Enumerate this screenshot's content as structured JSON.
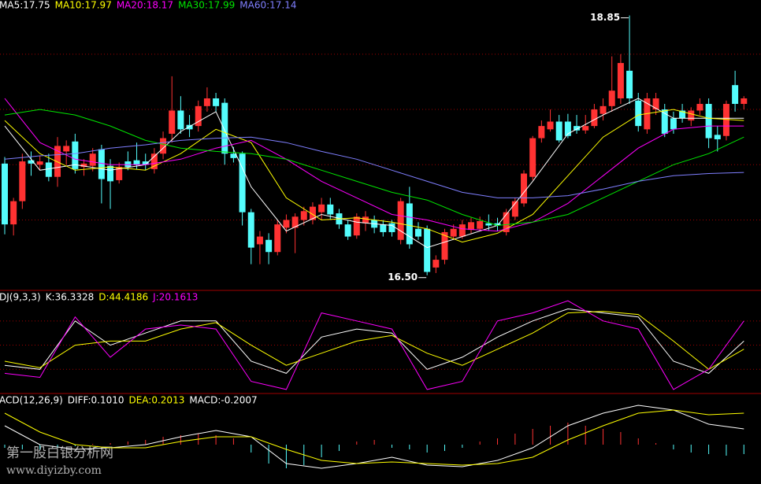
{
  "chart_data": [
    {
      "type": "candlestick",
      "up_color": "#ff3232",
      "down_color": "#54fcfc",
      "ylim": [
        16.37,
        18.99
      ],
      "yticks": [
        17.0,
        17.5,
        18.0,
        18.5
      ],
      "grid": true,
      "open": [
        17.51,
        16.96,
        17.17,
        17.54,
        17.5,
        17.52,
        17.39,
        17.62,
        17.71,
        17.48,
        17.49,
        17.64,
        17.49,
        17.36,
        17.53,
        17.54,
        17.53,
        17.46,
        17.6,
        17.78,
        17.99,
        17.86,
        17.85,
        18.03,
        18.1,
        18.06,
        17.6,
        17.6,
        17.07,
        16.78,
        16.82,
        16.71,
        16.93,
        16.93,
        17.0,
        17.0,
        17.07,
        17.14,
        17.06,
        16.96,
        16.86,
        16.97,
        17.0,
        16.96,
        16.97,
        16.82,
        17.15,
        16.92,
        16.92,
        16.57,
        16.64,
        16.85,
        16.85,
        16.91,
        16.92,
        16.97,
        16.97,
        16.89,
        17.03,
        17.15,
        17.39,
        17.74,
        17.82,
        17.89,
        17.89,
        17.85,
        17.81,
        17.85,
        17.96,
        18.03,
        18.1,
        18.35,
        18.08,
        17.82,
        18.0,
        18.0,
        17.92,
        17.99,
        17.9,
        17.99,
        18.05,
        17.77,
        17.76,
        18.22,
        18.05
      ],
      "high": [
        17.57,
        17.2,
        17.6,
        17.62,
        17.58,
        17.6,
        17.75,
        17.72,
        17.78,
        17.55,
        17.65,
        17.68,
        17.55,
        17.52,
        17.62,
        17.7,
        17.6,
        17.65,
        17.8,
        18.3,
        18.12,
        17.95,
        18.08,
        18.2,
        18.15,
        18.1,
        17.66,
        17.62,
        17.1,
        16.9,
        16.88,
        17.0,
        17.05,
        17.06,
        17.12,
        17.16,
        17.2,
        17.2,
        17.1,
        17.0,
        17.06,
        17.08,
        17.04,
        17.0,
        17.0,
        17.2,
        17.3,
        16.98,
        16.95,
        16.68,
        16.92,
        16.96,
        17.0,
        17.02,
        17.03,
        17.05,
        17.02,
        17.1,
        17.2,
        17.45,
        17.76,
        17.9,
        18.0,
        17.95,
        17.96,
        17.95,
        17.95,
        18.05,
        18.1,
        18.48,
        18.5,
        18.85,
        18.15,
        18.15,
        18.15,
        18.05,
        17.98,
        18.05,
        18.02,
        18.1,
        18.1,
        17.85,
        18.08,
        18.35,
        18.12
      ],
      "low": [
        16.87,
        16.86,
        17.1,
        17.4,
        17.45,
        17.35,
        17.3,
        17.5,
        17.42,
        17.4,
        17.44,
        17.15,
        17.1,
        17.33,
        17.45,
        17.46,
        17.45,
        17.42,
        17.55,
        17.7,
        17.78,
        17.75,
        17.8,
        17.98,
        17.98,
        17.5,
        17.52,
        16.95,
        16.6,
        16.6,
        16.6,
        16.68,
        16.88,
        16.7,
        16.95,
        16.96,
        17.0,
        17.0,
        16.92,
        16.82,
        16.83,
        16.9,
        16.88,
        16.85,
        16.85,
        16.78,
        16.74,
        16.82,
        16.5,
        16.52,
        16.6,
        16.82,
        16.83,
        16.88,
        16.9,
        16.9,
        16.9,
        16.86,
        17.0,
        17.12,
        17.36,
        17.7,
        17.8,
        17.7,
        17.74,
        17.78,
        17.78,
        17.83,
        17.9,
        17.98,
        18.05,
        18.05,
        17.8,
        17.78,
        17.95,
        17.75,
        17.78,
        17.88,
        17.85,
        17.95,
        17.65,
        17.62,
        17.72,
        17.98,
        18.0
      ],
      "close": [
        16.96,
        17.17,
        17.53,
        17.51,
        17.53,
        17.39,
        17.67,
        17.67,
        17.46,
        17.51,
        17.6,
        17.37,
        17.35,
        17.48,
        17.48,
        17.5,
        17.5,
        17.6,
        17.74,
        17.99,
        17.82,
        17.82,
        18.03,
        18.1,
        18.03,
        17.6,
        17.56,
        17.07,
        16.75,
        16.85,
        16.71,
        16.96,
        17.0,
        17.03,
        17.08,
        17.12,
        17.14,
        17.05,
        16.96,
        16.85,
        17.03,
        17.03,
        16.93,
        16.89,
        16.89,
        17.17,
        16.78,
        16.85,
        16.53,
        16.64,
        16.89,
        16.92,
        16.96,
        16.98,
        16.99,
        16.95,
        16.95,
        17.07,
        17.17,
        17.42,
        17.74,
        17.85,
        17.89,
        17.72,
        17.76,
        17.81,
        17.85,
        18.0,
        18.03,
        18.17,
        18.42,
        18.1,
        17.85,
        18.1,
        18.1,
        17.78,
        17.82,
        17.92,
        17.99,
        18.05,
        17.74,
        17.73,
        18.05,
        18.05,
        18.1
      ],
      "annotations": [
        {
          "label": "18.85",
          "x": 71
        },
        {
          "label": "16.50",
          "x": 48
        }
      ],
      "series": [
        {
          "name": "MA5:17.75",
          "color": "#ffffff",
          "x": [
            0,
            4,
            8,
            12,
            16,
            20,
            24,
            28,
            32,
            36,
            40,
            44,
            48,
            52,
            56,
            60,
            64,
            68,
            72,
            76,
            80,
            84
          ],
          "values": [
            17.85,
            17.45,
            17.5,
            17.45,
            17.5,
            17.8,
            17.98,
            17.3,
            16.9,
            17.05,
            16.98,
            16.95,
            16.75,
            16.85,
            16.95,
            17.35,
            17.78,
            17.95,
            18.1,
            17.92,
            17.92,
            17.92
          ]
        },
        {
          "name": "MA10:17.97",
          "color": "#ffff00",
          "x": [
            0,
            4,
            8,
            12,
            16,
            20,
            24,
            28,
            32,
            36,
            40,
            44,
            48,
            52,
            56,
            60,
            64,
            68,
            72,
            76,
            80,
            84
          ],
          "values": [
            17.9,
            17.6,
            17.45,
            17.48,
            17.45,
            17.6,
            17.82,
            17.7,
            17.2,
            17.0,
            17.02,
            16.98,
            16.92,
            16.8,
            16.88,
            17.05,
            17.4,
            17.75,
            17.95,
            18.0,
            17.92,
            17.9
          ]
        },
        {
          "name": "MA20:18.17",
          "color": "#ff00ff",
          "x": [
            0,
            4,
            8,
            12,
            16,
            20,
            24,
            28,
            32,
            36,
            40,
            44,
            48,
            52,
            56,
            60,
            64,
            68,
            72,
            76,
            80,
            84
          ],
          "values": [
            18.1,
            17.7,
            17.55,
            17.5,
            17.5,
            17.55,
            17.65,
            17.72,
            17.55,
            17.35,
            17.2,
            17.05,
            17.0,
            16.92,
            16.9,
            16.98,
            17.15,
            17.4,
            17.65,
            17.82,
            17.85,
            17.85
          ]
        },
        {
          "name": "MA30:17.99",
          "color": "#00e600",
          "x": [
            0,
            4,
            8,
            12,
            16,
            20,
            24,
            28,
            32,
            36,
            40,
            44,
            48,
            52,
            56,
            60,
            64,
            68,
            72,
            76,
            80,
            84
          ],
          "values": [
            17.95,
            18.0,
            17.95,
            17.85,
            17.72,
            17.65,
            17.62,
            17.6,
            17.55,
            17.45,
            17.35,
            17.25,
            17.18,
            17.05,
            16.95,
            16.98,
            17.05,
            17.2,
            17.35,
            17.5,
            17.6,
            17.75
          ]
        },
        {
          "name": "MA60:17.14",
          "color": "#7f7fff",
          "x": [
            0,
            4,
            8,
            12,
            16,
            20,
            24,
            28,
            32,
            36,
            40,
            44,
            48,
            52,
            56,
            60,
            64,
            68,
            72,
            76,
            80,
            84
          ],
          "values": [
            17.55,
            17.58,
            17.6,
            17.65,
            17.68,
            17.72,
            17.74,
            17.75,
            17.7,
            17.62,
            17.55,
            17.45,
            17.35,
            17.25,
            17.2,
            17.2,
            17.22,
            17.28,
            17.35,
            17.4,
            17.42,
            17.43
          ]
        }
      ]
    },
    {
      "type": "line",
      "title": "DJ(9,3,3)",
      "ylim": [
        -10,
        115
      ],
      "yticks": [
        20,
        50,
        80
      ],
      "grid": true,
      "series": [
        {
          "name": "K:36.3328",
          "color": "#ffffff",
          "x": [
            0,
            4,
            8,
            12,
            16,
            20,
            24,
            28,
            32,
            36,
            40,
            44,
            48,
            52,
            56,
            60,
            64,
            68,
            72,
            76,
            80,
            84
          ],
          "values": [
            25,
            20,
            80,
            50,
            65,
            80,
            80,
            30,
            15,
            60,
            70,
            65,
            20,
            35,
            60,
            80,
            95,
            90,
            85,
            30,
            15,
            55
          ]
        },
        {
          "name": "D:44.4186",
          "color": "#ffff00",
          "x": [
            0,
            4,
            8,
            12,
            16,
            20,
            24,
            28,
            32,
            36,
            40,
            44,
            48,
            52,
            56,
            60,
            64,
            68,
            72,
            76,
            80,
            84
          ],
          "values": [
            30,
            22,
            50,
            55,
            55,
            70,
            78,
            50,
            25,
            40,
            55,
            62,
            40,
            25,
            45,
            65,
            90,
            92,
            88,
            55,
            20,
            45
          ]
        },
        {
          "name": "J:20.1613",
          "color": "#ff00ff",
          "x": [
            0,
            4,
            8,
            12,
            16,
            20,
            24,
            28,
            32,
            36,
            40,
            44,
            48,
            52,
            56,
            60,
            64,
            68,
            72,
            76,
            80,
            84
          ],
          "values": [
            15,
            10,
            85,
            35,
            70,
            75,
            70,
            5,
            -5,
            90,
            80,
            70,
            -5,
            5,
            80,
            90,
            105,
            80,
            70,
            -5,
            20,
            80
          ]
        }
      ]
    },
    {
      "type": "combo",
      "title": "ACD(12,26,9)",
      "ylim": [
        -0.235,
        0.315
      ],
      "up_color": "#ff3232",
      "down_color": "#54fcfc",
      "histogram": {
        "name": "MACD:-0.2007",
        "color": "#ffffff",
        "x": [
          0,
          2,
          4,
          6,
          8,
          10,
          12,
          14,
          16,
          18,
          20,
          22,
          24,
          26,
          28,
          30,
          32,
          34,
          36,
          38,
          40,
          42,
          44,
          46,
          48,
          50,
          52,
          54,
          56,
          58,
          60,
          62,
          64,
          66,
          68,
          70,
          72,
          74,
          76,
          78,
          80,
          82,
          84
        ],
        "values": [
          -0.02,
          -0.03,
          -0.03,
          -0.02,
          -0.01,
          0.005,
          0.01,
          0.02,
          0.03,
          0.05,
          0.06,
          0.07,
          0.06,
          0.04,
          -0.05,
          -0.12,
          -0.15,
          -0.13,
          -0.08,
          -0.04,
          0.02,
          0.03,
          -0.02,
          -0.03,
          -0.05,
          -0.04,
          -0.02,
          0.02,
          0.04,
          0.07,
          0.1,
          0.12,
          0.14,
          0.12,
          0.1,
          0.08,
          0.04,
          0.01,
          -0.03,
          -0.05,
          -0.06,
          -0.07,
          -0.06
        ]
      },
      "series": [
        {
          "name": "DIFF:0.1010",
          "color": "#ffffff",
          "x": [
            0,
            4,
            8,
            12,
            16,
            20,
            24,
            28,
            32,
            36,
            40,
            44,
            48,
            52,
            56,
            60,
            64,
            68,
            72,
            76,
            80,
            84
          ],
          "values": [
            0.12,
            0.0,
            -0.03,
            -0.02,
            0.0,
            0.05,
            0.09,
            0.05,
            -0.12,
            -0.15,
            -0.12,
            -0.08,
            -0.13,
            -0.14,
            -0.1,
            -0.02,
            0.12,
            0.2,
            0.25,
            0.22,
            0.13,
            0.1
          ]
        },
        {
          "name": "DEA:0.2013",
          "color": "#ffff00",
          "x": [
            0,
            4,
            8,
            12,
            16,
            20,
            24,
            28,
            32,
            36,
            40,
            44,
            48,
            52,
            56,
            60,
            64,
            68,
            72,
            76,
            80,
            84
          ],
          "values": [
            0.2,
            0.08,
            0.0,
            -0.02,
            -0.02,
            0.02,
            0.05,
            0.05,
            -0.03,
            -0.1,
            -0.12,
            -0.11,
            -0.12,
            -0.13,
            -0.12,
            -0.08,
            0.03,
            0.12,
            0.2,
            0.22,
            0.19,
            0.2
          ]
        }
      ]
    }
  ],
  "watermark": {
    "title": "第一股白银分析网",
    "url": "www.diyizby.com"
  }
}
